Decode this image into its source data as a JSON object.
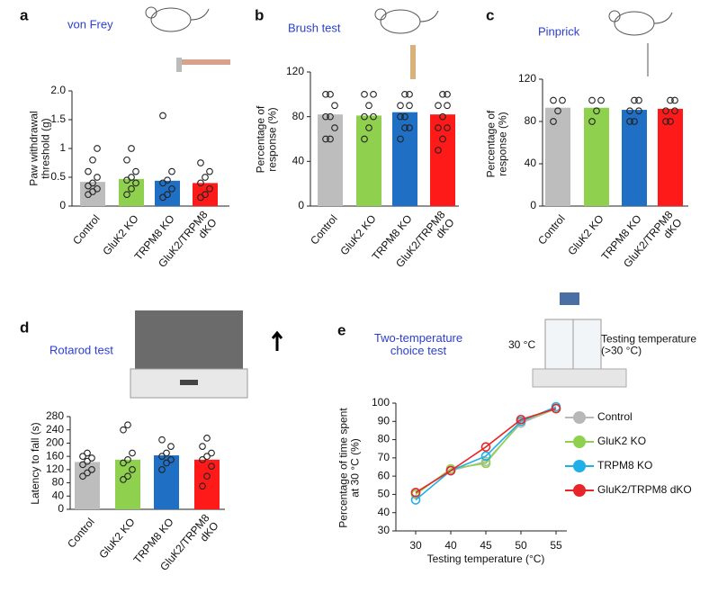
{
  "chart_data": [
    {
      "type": "bar",
      "panel_label": "a",
      "title": "von Frey",
      "ylabel": "Paw withdrawal\nthreshold (g)",
      "categories": [
        "Control",
        "GluK2 KO",
        "TRPM8 KO",
        "GluK2/TRPM8\ndKO"
      ],
      "values": [
        0.42,
        0.47,
        0.44,
        0.4
      ],
      "colors": [
        "#bdbdbd",
        "#8fd14f",
        "#1f6fc4",
        "#ff1a1a"
      ],
      "points": [
        [
          0.2,
          0.25,
          0.3,
          0.35,
          0.4,
          0.5,
          0.6,
          0.8,
          1.0
        ],
        [
          0.2,
          0.3,
          0.4,
          0.45,
          0.5,
          0.6,
          0.8,
          1.0
        ],
        [
          0.15,
          0.2,
          0.3,
          0.4,
          0.45,
          0.6,
          1.57
        ],
        [
          0.15,
          0.2,
          0.3,
          0.4,
          0.5,
          0.6,
          0.75
        ]
      ],
      "ylim": [
        0,
        2
      ],
      "yticks": [
        0,
        0.5,
        1,
        1.5,
        {
          "value": 2,
          "label": "2.0"
        }
      ]
    },
    {
      "type": "bar",
      "panel_label": "b",
      "title": "Brush test",
      "ylabel": "Percentage of\nresponse (%)",
      "categories": [
        "Control",
        "GluK2 KO",
        "TRPM8 KO",
        "GluK2/TRPM8\ndKO"
      ],
      "values": [
        82,
        81,
        84,
        82
      ],
      "colors": [
        "#bdbdbd",
        "#8fd14f",
        "#1f6fc4",
        "#ff1a1a"
      ],
      "points": [
        [
          60,
          60,
          70,
          80,
          80,
          90,
          100,
          100
        ],
        [
          60,
          70,
          80,
          80,
          90,
          100,
          100
        ],
        [
          60,
          70,
          70,
          80,
          80,
          90,
          90,
          100,
          100
        ],
        [
          50,
          60,
          70,
          70,
          80,
          90,
          90,
          100,
          100
        ]
      ],
      "ylim": [
        0,
        120
      ],
      "yticks": [
        0,
        40,
        80,
        120
      ]
    },
    {
      "type": "bar",
      "panel_label": "c",
      "title": "Pinprick",
      "ylabel": "Percentage of\nresponse (%)",
      "categories": [
        "Control",
        "GluK2 KO",
        "TRPM8 KO",
        "GluK2/TRPM8\ndKO"
      ],
      "values": [
        93,
        93,
        91,
        92
      ],
      "colors": [
        "#bdbdbd",
        "#8fd14f",
        "#1f6fc4",
        "#ff1a1a"
      ],
      "points": [
        [
          80,
          90,
          100,
          100
        ],
        [
          80,
          90,
          100,
          100
        ],
        [
          80,
          80,
          90,
          90,
          100,
          100
        ],
        [
          80,
          80,
          90,
          90,
          100,
          100
        ]
      ],
      "ylim": [
        0,
        120
      ],
      "yticks": [
        0,
        40,
        80,
        120
      ]
    },
    {
      "type": "bar",
      "panel_label": "d",
      "title": "Rotarod test",
      "ylabel": "Latency to fall (s)",
      "categories": [
        "Control",
        "GluK2 KO",
        "TRPM8 KO",
        "GluK2/TRPM8\ndKO"
      ],
      "values": [
        143,
        150,
        163,
        150
      ],
      "colors": [
        "#bdbdbd",
        "#8fd14f",
        "#1f6fc4",
        "#ff1a1a"
      ],
      "points": [
        [
          100,
          110,
          120,
          135,
          145,
          155,
          160,
          170
        ],
        [
          90,
          100,
          120,
          140,
          150,
          170,
          240,
          255
        ],
        [
          120,
          140,
          150,
          160,
          170,
          190,
          210
        ],
        [
          70,
          100,
          130,
          150,
          160,
          170,
          190,
          215
        ]
      ],
      "ylim": [
        0,
        280
      ],
      "yticks": [
        0,
        40,
        80,
        120,
        160,
        200,
        240,
        280
      ]
    },
    {
      "type": "line",
      "panel_label": "e",
      "title": "Two-temperature\nchoice test",
      "ylabel": "Percentage of time spent\nat 30 °C (%)",
      "xlabel": "Testing temperature (°C)",
      "annotations": [
        "30 °C",
        "Testing temperature\n(>30 °C)"
      ],
      "categories": [
        30,
        40,
        45,
        50,
        55
      ],
      "series": [
        {
          "name": "Control",
          "color": "#b8b8b8",
          "values": [
            51,
            63,
            68,
            89,
            97
          ]
        },
        {
          "name": "GluK2 KO",
          "color": "#8fd14f",
          "values": [
            50,
            64,
            67,
            90,
            97
          ]
        },
        {
          "name": "TRPM8 KO",
          "color": "#1fb0e8",
          "values": [
            47,
            63,
            71,
            90,
            98
          ]
        },
        {
          "name": "GluK2/TRPM8 dKO",
          "color": "#e8262a",
          "values": [
            51,
            63,
            76,
            91,
            97
          ]
        }
      ],
      "ylim": [
        30,
        100
      ],
      "yticks": [
        30,
        40,
        50,
        60,
        70,
        80,
        90,
        100
      ]
    }
  ]
}
